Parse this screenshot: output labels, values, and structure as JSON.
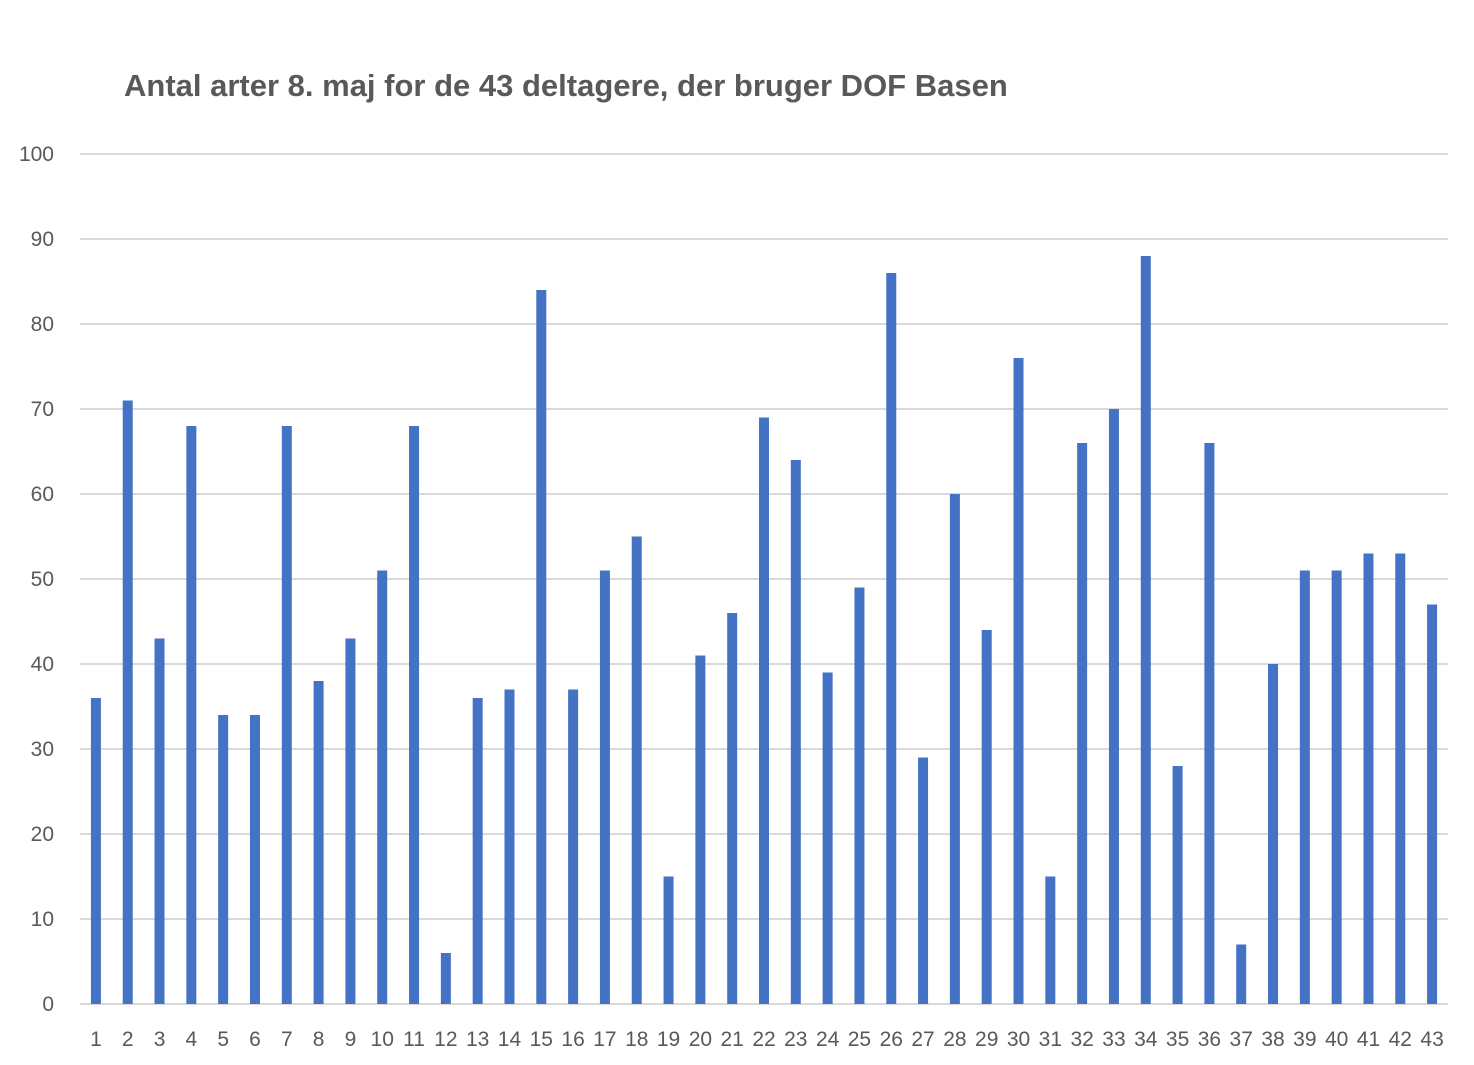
{
  "chart_data": {
    "type": "bar",
    "title": "Antal arter 8. maj for de 43 deltagere, der bruger DOF Basen",
    "xlabel": "",
    "ylabel": "",
    "categories": [
      "1",
      "2",
      "3",
      "4",
      "5",
      "6",
      "7",
      "8",
      "9",
      "10",
      "11",
      "12",
      "13",
      "14",
      "15",
      "16",
      "17",
      "18",
      "19",
      "20",
      "21",
      "22",
      "23",
      "24",
      "25",
      "26",
      "27",
      "28",
      "29",
      "30",
      "31",
      "32",
      "33",
      "34",
      "35",
      "36",
      "37",
      "38",
      "39",
      "40",
      "41",
      "42",
      "43"
    ],
    "values": [
      36,
      71,
      43,
      68,
      34,
      34,
      68,
      38,
      43,
      51,
      68,
      6,
      36,
      37,
      84,
      37,
      51,
      55,
      15,
      41,
      46,
      69,
      64,
      39,
      49,
      86,
      29,
      60,
      44,
      76,
      15,
      66,
      70,
      88,
      28,
      66,
      7,
      40,
      51,
      51,
      53,
      53,
      47
    ],
    "ylim": [
      0,
      100
    ],
    "yticks": [
      0,
      10,
      20,
      30,
      40,
      50,
      60,
      70,
      80,
      90,
      100
    ],
    "grid": true,
    "legend": "none",
    "bar_color": "#4472C4",
    "grid_color": "#D9D9D9",
    "text_color": "#595959"
  }
}
